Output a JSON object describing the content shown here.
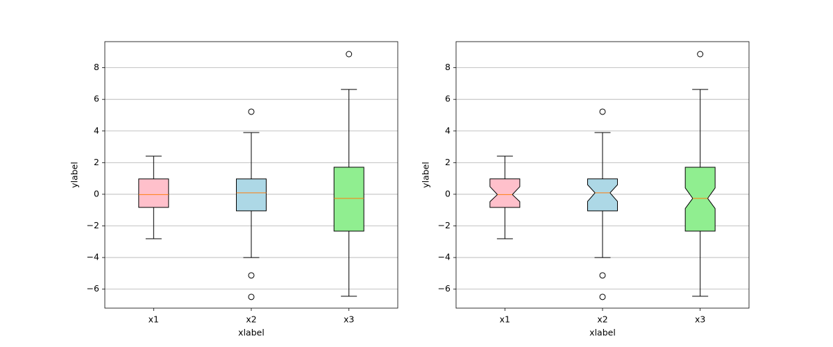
{
  "chart_data": [
    {
      "type": "box",
      "xlabel": "xlabel",
      "ylabel": "ylabel",
      "notch": false,
      "grid": true,
      "categories": [
        "x1",
        "x2",
        "x3"
      ],
      "colors": [
        "pink",
        "lightblue",
        "lightgreen"
      ],
      "median_color": "#ff7f0e",
      "ylim": [
        -7.2,
        9.65
      ],
      "yticks": [
        {
          "value": -6,
          "label": "−6"
        },
        {
          "value": -4,
          "label": "−4"
        },
        {
          "value": -2,
          "label": "−2"
        },
        0,
        2,
        4,
        6,
        8
      ],
      "boxes": [
        {
          "whislo": -2.81,
          "q1": -0.83,
          "med": -0.02,
          "q3": 0.97,
          "whishi": 2.41,
          "fliers": []
        },
        {
          "whislo": -4.0,
          "q1": -1.05,
          "med": 0.09,
          "q3": 0.97,
          "whishi": 3.9,
          "fliers": [
            5.22,
            -5.13,
            -6.49
          ]
        },
        {
          "whislo": -6.45,
          "q1": -2.33,
          "med": -0.26,
          "q3": 1.71,
          "whishi": 6.63,
          "fliers": [
            8.86
          ]
        }
      ]
    },
    {
      "type": "box",
      "xlabel": "xlabel",
      "ylabel": "ylabel",
      "notch": true,
      "grid": true,
      "categories": [
        "x1",
        "x2",
        "x3"
      ],
      "colors": [
        "pink",
        "lightblue",
        "lightgreen"
      ],
      "median_color": "#ff7f0e",
      "ylim": [
        -7.2,
        9.65
      ],
      "yticks": [
        {
          "value": -6,
          "label": "−6"
        },
        {
          "value": -4,
          "label": "−4"
        },
        {
          "value": -2,
          "label": "−2"
        },
        0,
        2,
        4,
        6,
        8
      ],
      "boxes": [
        {
          "whislo": -2.81,
          "q1": -0.83,
          "notch_lo": -0.47,
          "med": -0.02,
          "notch_hi": 0.48,
          "q3": 0.97,
          "whishi": 2.41,
          "fliers": []
        },
        {
          "whislo": -4.0,
          "q1": -1.05,
          "notch_lo": -0.45,
          "med": 0.09,
          "notch_hi": 0.6,
          "q3": 0.97,
          "whishi": 3.9,
          "fliers": [
            5.22,
            -5.13,
            -6.49
          ]
        },
        {
          "whislo": -6.45,
          "q1": -2.33,
          "notch_lo": -0.9,
          "med": -0.26,
          "notch_hi": 0.4,
          "q3": 1.71,
          "whishi": 6.63,
          "fliers": [
            8.86
          ]
        }
      ]
    }
  ]
}
